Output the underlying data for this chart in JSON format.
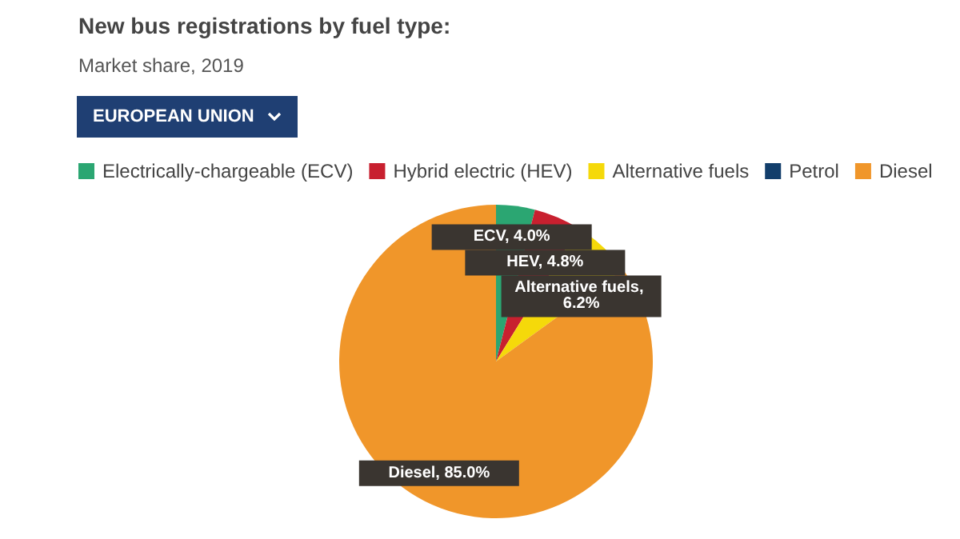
{
  "chart_data": {
    "type": "pie",
    "title": "New bus registrations by fuel type:",
    "subtitle": "Market share, 2019",
    "annotations": [
      "EUROPEAN UNION"
    ],
    "categories": [
      "Electrically-chargeable (ECV)",
      "Hybrid electric (HEV)",
      "Alternative fuels",
      "Petrol",
      "Diesel"
    ],
    "values": [
      4.0,
      4.8,
      6.2,
      0.0,
      85.0
    ],
    "value_labels": [
      "ECV, 4.0%",
      "HEV, 4.8%",
      "Alternative fuels, 6.2%",
      null,
      "Diesel, 85.0%"
    ],
    "colors": [
      "#2ba672",
      "#c8202f",
      "#f5d90a",
      "#123e6b",
      "#f0962a"
    ],
    "legend": "top left"
  }
}
